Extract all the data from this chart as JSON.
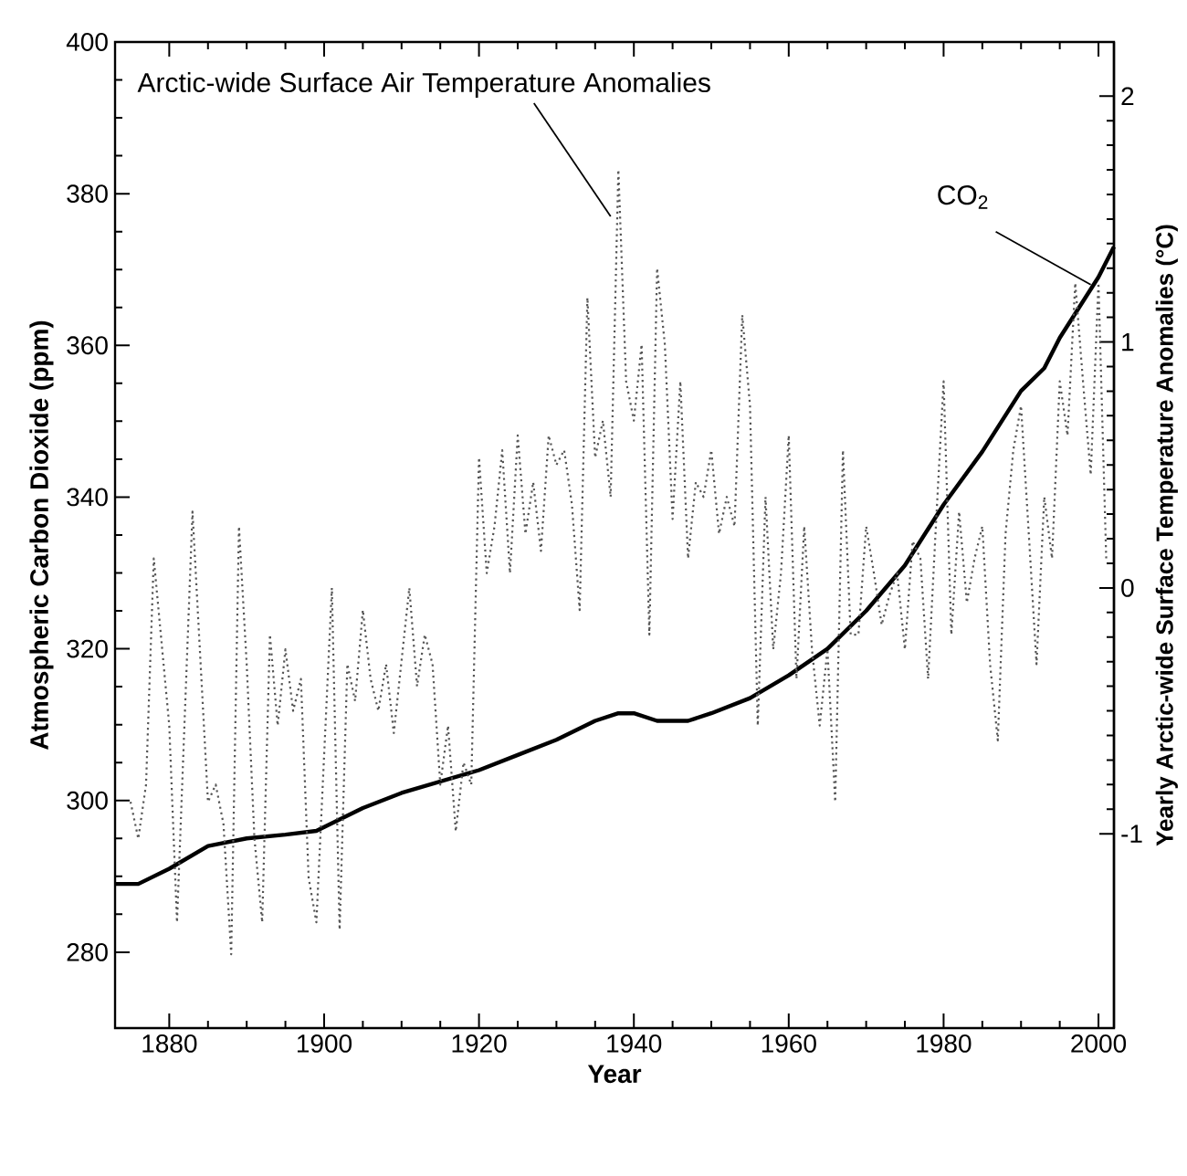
{
  "chart_data": {
    "type": "line",
    "xlabel": "Year",
    "ylabel": "Atmospheric Carbon Dioxide (ppm)",
    "y2label": "Yearly Arctic-wide Surface Temperature Anomalies (°C)",
    "xlim": [
      1873,
      2002
    ],
    "xticks": [
      1880,
      1900,
      1920,
      1940,
      1960,
      1980,
      2000
    ],
    "ylim": [
      270,
      400
    ],
    "yticks": [
      280,
      300,
      320,
      340,
      360,
      380,
      400
    ],
    "y2lim": [
      -1.79,
      2.22
    ],
    "y2ticks": [
      -1,
      0,
      1,
      2
    ],
    "annotations": [
      {
        "text": "Arctic-wide Surface Air Temperature Anomalies",
        "x": 1937,
        "y": 377
      },
      {
        "text": "CO$_{2}$",
        "x": 1999,
        "y": 368
      }
    ],
    "series": [
      {
        "color": "#000000",
        "line_style": "solid",
        "x": [
          1873,
          1876,
          1880,
          1885,
          1890,
          1895,
          1899,
          1905,
          1910,
          1915,
          1920,
          1925,
          1930,
          1935,
          1938,
          1940,
          1943,
          1947,
          1950,
          1955,
          1960,
          1965,
          1970,
          1975,
          1980,
          1985,
          1990,
          1993,
          1995,
          2000,
          2002
        ],
        "values": [
          289,
          289,
          291,
          294,
          295,
          295.5,
          296,
          299,
          301,
          302.5,
          304,
          306,
          308,
          310.5,
          311.5,
          311.5,
          310.5,
          310.5,
          311.5,
          313.5,
          316.5,
          320,
          325,
          331,
          339,
          346,
          354,
          357,
          361,
          369,
          373
        ]
      },
      {
        "color": "#555555",
        "line_style": "dotted",
        "axis": "y2",
        "x": [
          1875,
          1876,
          1877,
          1878,
          1880,
          1881,
          1883,
          1885,
          1886,
          1887,
          1888,
          1889,
          1890,
          1891,
          1892,
          1893,
          1894,
          1895,
          1896,
          1897,
          1898,
          1899,
          1901,
          1902,
          1903,
          1904,
          1905,
          1906,
          1907,
          1908,
          1909,
          1911,
          1912,
          1913,
          1914,
          1915,
          1916,
          1917,
          1918,
          1919,
          1920,
          1921,
          1922,
          1923,
          1924,
          1925,
          1926,
          1927,
          1928,
          1929,
          1930,
          1931,
          1932,
          1933,
          1934,
          1935,
          1936,
          1937,
          1938,
          1939,
          1940,
          1941,
          1942,
          1943,
          1944,
          1945,
          1946,
          1947,
          1948,
          1949,
          1950,
          1951,
          1952,
          1953,
          1954,
          1955,
          1956,
          1957,
          1958,
          1959,
          1960,
          1961,
          1962,
          1963,
          1964,
          1965,
          1966,
          1967,
          1968,
          1969,
          1970,
          1971,
          1972,
          1973,
          1974,
          1975,
          1976,
          1977,
          1978,
          1979,
          1980,
          1981,
          1982,
          1983,
          1984,
          1985,
          1986,
          1987,
          1988,
          1989,
          1990,
          1991,
          1992,
          1993,
          1994,
          1995,
          1996,
          1997,
          1998,
          1999,
          2000,
          2001
        ],
        "values": [
          -0.87,
          -1.02,
          -0.8,
          0.12,
          -0.56,
          -1.36,
          0.31,
          -0.87,
          -0.8,
          -0.96,
          -1.49,
          0.25,
          -0.31,
          -1.02,
          -1.36,
          -0.19,
          -0.56,
          -0.25,
          -0.5,
          -0.37,
          -1.18,
          -1.36,
          0.0,
          -1.39,
          -0.31,
          -0.46,
          -0.09,
          -0.37,
          -0.5,
          -0.31,
          -0.59,
          0.0,
          -0.4,
          -0.19,
          -0.31,
          -0.8,
          -0.56,
          -0.99,
          -0.71,
          -0.8,
          0.53,
          0.06,
          0.25,
          0.56,
          0.06,
          0.62,
          0.22,
          0.43,
          0.15,
          0.62,
          0.5,
          0.56,
          0.34,
          -0.09,
          1.18,
          0.53,
          0.68,
          0.37,
          1.7,
          0.84,
          0.68,
          0.99,
          -0.19,
          1.3,
          0.99,
          0.28,
          0.84,
          0.12,
          0.43,
          0.37,
          0.56,
          0.22,
          0.37,
          0.25,
          1.11,
          0.74,
          -0.56,
          0.37,
          -0.25,
          0.06,
          0.62,
          -0.37,
          0.25,
          -0.25,
          -0.56,
          -0.25,
          -0.87,
          0.56,
          -0.19,
          -0.19,
          0.25,
          0.06,
          -0.15,
          -0.03,
          0.06,
          -0.25,
          0.19,
          0.12,
          -0.37,
          0.25,
          0.84,
          -0.19,
          0.31,
          -0.06,
          0.12,
          0.25,
          -0.31,
          -0.62,
          0.22,
          0.56,
          0.74,
          0.22,
          -0.31,
          0.37,
          0.12,
          0.84,
          0.62,
          1.24,
          0.84,
          0.46,
          1.24,
          0.12
        ]
      }
    ]
  }
}
